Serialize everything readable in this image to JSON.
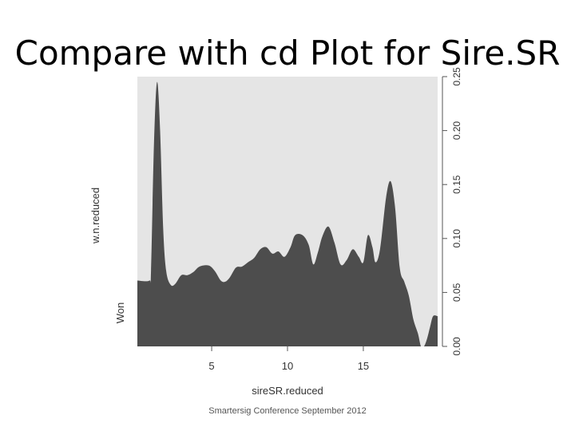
{
  "slide": {
    "title": "Compare with cd Plot for Sire.SR",
    "footer": "Smartersig Conference September 2012"
  },
  "chart_data": {
    "type": "area",
    "xlabel": "sireSR.reduced",
    "ylabel_top": "w.n.reduced",
    "ylabel_bottom": "Won",
    "xlim": [
      0.1,
      19.9
    ],
    "ylim": [
      0,
      0.25
    ],
    "x_ticks": [
      5,
      10,
      15
    ],
    "y_ticks": [
      0.0,
      0.05,
      0.1,
      0.15,
      0.2,
      0.25
    ],
    "y_tick_labels": [
      "0.00",
      "0.05",
      "0.10",
      "0.15",
      "0.20",
      "0.25"
    ],
    "grid": false,
    "fill_color": "#4d4d4d",
    "background_color": "#e5e5e5",
    "x": [
      0.1,
      0.9,
      1.0,
      1.2,
      1.4,
      1.6,
      1.8,
      2.0,
      2.3,
      2.6,
      3.0,
      3.4,
      3.8,
      4.2,
      4.8,
      5.2,
      5.6,
      5.9,
      6.2,
      6.6,
      7.0,
      7.4,
      7.8,
      8.2,
      8.6,
      9.0,
      9.4,
      9.8,
      10.2,
      10.5,
      11.0,
      11.4,
      11.7,
      12.0,
      12.3,
      12.7,
      13.1,
      13.5,
      13.9,
      14.3,
      14.7,
      15.0,
      15.3,
      15.6,
      15.8,
      16.1,
      16.5,
      16.8,
      17.1,
      17.4,
      17.7,
      18.0,
      18.3,
      18.6,
      18.8,
      19.0,
      19.2,
      19.4,
      19.6,
      19.9
    ],
    "y": [
      0.061,
      0.061,
      0.07,
      0.19,
      0.245,
      0.2,
      0.11,
      0.07,
      0.057,
      0.058,
      0.066,
      0.066,
      0.069,
      0.074,
      0.075,
      0.07,
      0.061,
      0.06,
      0.064,
      0.073,
      0.074,
      0.078,
      0.082,
      0.09,
      0.092,
      0.086,
      0.088,
      0.083,
      0.092,
      0.103,
      0.103,
      0.094,
      0.076,
      0.087,
      0.102,
      0.111,
      0.096,
      0.076,
      0.08,
      0.09,
      0.083,
      0.078,
      0.103,
      0.092,
      0.078,
      0.09,
      0.138,
      0.153,
      0.128,
      0.073,
      0.06,
      0.047,
      0.025,
      0.012,
      0.0,
      0.0,
      0.007,
      0.018,
      0.028,
      0.028
    ]
  }
}
